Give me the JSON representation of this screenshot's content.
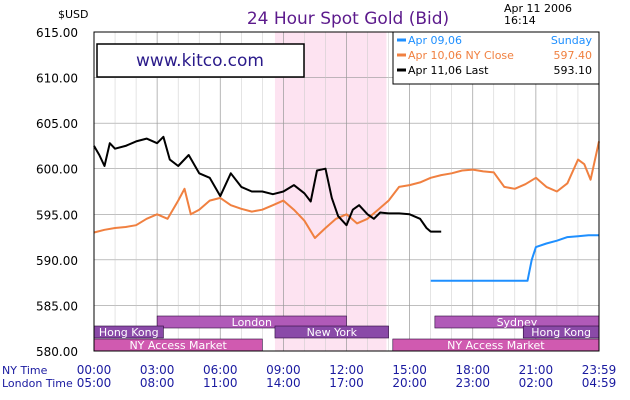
{
  "chart_data": {
    "type": "line",
    "title": "24 Hour Spot Gold (Bid)",
    "y_unit": "$USD",
    "timestamp": [
      "Apr 11 2006",
      "16:14"
    ],
    "watermark": "www.kitco.com",
    "ylim": [
      580,
      615
    ],
    "y_ticks": [
      "615.00",
      "610.00",
      "605.00",
      "600.00",
      "595.00",
      "590.00",
      "585.00",
      "580.00"
    ],
    "x_rows": [
      {
        "label": "NY Time",
        "ticks": [
          "00:00",
          "03:00",
          "06:00",
          "09:00",
          "12:00",
          "15:00",
          "18:00",
          "21:00",
          "23:59"
        ]
      },
      {
        "label": "London Time",
        "ticks": [
          "05:00",
          "08:00",
          "11:00",
          "14:00",
          "17:00",
          "20:00",
          "23:00",
          "02:00",
          "04:59"
        ]
      }
    ],
    "legend": [
      {
        "label": "Apr  09,06",
        "right": "Sunday",
        "color": "#1e8fff"
      },
      {
        "label": "Apr  10,06  NY Close",
        "right": "597.40",
        "color": "#f08040"
      },
      {
        "label": "Apr  11,06  Last",
        "right": "593.10",
        "color": "#000000"
      }
    ],
    "highlight_window": {
      "from_hour": 8.6,
      "to_hour": 13.9,
      "color": "#fde3f1"
    },
    "sessions": [
      {
        "name": "London",
        "start": 3.0,
        "end": 12.0,
        "row": 0,
        "color": "#b05ab8"
      },
      {
        "name": "Sydney",
        "start": 16.2,
        "end": 24.0,
        "row": 0,
        "color": "#b05ab8"
      },
      {
        "name": "Hong  Kong",
        "start": 0.0,
        "end": 3.3,
        "row": 1,
        "color": "#8a4aa8"
      },
      {
        "name": "New  York",
        "start": 8.6,
        "end": 14.0,
        "row": 1,
        "color": "#8a4aa8"
      },
      {
        "name": "Hong  Kong",
        "start": 20.4,
        "end": 24.0,
        "row": 1,
        "color": "#8a4aa8"
      },
      {
        "name": "NY  Access  Market",
        "start": 0.0,
        "end": 8.0,
        "row": 2,
        "color": "#d05ab0"
      },
      {
        "name": "NY  Access  Market",
        "start": 14.2,
        "end": 24.0,
        "row": 2,
        "color": "#d05ab0"
      }
    ],
    "series": [
      {
        "name": "Apr 09,06",
        "color": "#1e8fff",
        "x": [
          16.0,
          17.0,
          18.0,
          19.0,
          20.0,
          20.6,
          20.8,
          21.0,
          21.5,
          22.0,
          22.5,
          23.0,
          23.5,
          24.0
        ],
        "y": [
          587.7,
          587.7,
          587.7,
          587.7,
          587.7,
          587.7,
          590.0,
          591.4,
          591.8,
          592.1,
          592.5,
          592.6,
          592.7,
          592.7
        ]
      },
      {
        "name": "Apr 10,06",
        "color": "#f08040",
        "x": [
          0.0,
          0.5,
          1.0,
          1.5,
          2.0,
          2.5,
          3.0,
          3.5,
          4.0,
          4.3,
          4.6,
          5.0,
          5.5,
          6.0,
          6.5,
          7.0,
          7.5,
          8.0,
          8.5,
          9.0,
          9.5,
          10.0,
          10.5,
          11.0,
          11.5,
          12.0,
          12.5,
          13.0,
          13.5,
          14.0,
          14.5,
          15.0,
          15.5,
          16.0,
          16.5,
          17.0,
          17.5,
          18.0,
          18.5,
          19.0,
          19.5,
          20.0,
          20.5,
          21.0,
          21.5,
          22.0,
          22.5,
          23.0,
          23.3,
          23.6,
          24.0
        ],
        "y": [
          593.0,
          593.3,
          593.5,
          593.6,
          593.8,
          594.5,
          595.0,
          594.5,
          596.5,
          597.8,
          595.0,
          595.5,
          596.5,
          596.8,
          596.0,
          595.6,
          595.3,
          595.5,
          596.0,
          596.5,
          595.5,
          594.3,
          592.4,
          593.5,
          594.5,
          595.0,
          594.0,
          594.5,
          595.5,
          596.5,
          598.0,
          598.2,
          598.5,
          599.0,
          599.3,
          599.5,
          599.8,
          599.9,
          599.7,
          599.6,
          598.0,
          597.8,
          598.3,
          599.0,
          598.0,
          597.5,
          598.4,
          601.0,
          600.5,
          598.8,
          603.0
        ]
      },
      {
        "name": "Apr 11,06",
        "color": "#000000",
        "x": [
          0.0,
          0.25,
          0.5,
          0.75,
          1.0,
          1.5,
          2.0,
          2.5,
          3.0,
          3.3,
          3.6,
          4.0,
          4.5,
          5.0,
          5.5,
          6.0,
          6.5,
          7.0,
          7.5,
          8.0,
          8.5,
          9.0,
          9.5,
          10.0,
          10.3,
          10.6,
          11.0,
          11.3,
          11.6,
          12.0,
          12.3,
          12.6,
          13.0,
          13.3,
          13.6,
          14.0,
          14.5,
          15.0,
          15.5,
          15.8,
          16.0,
          16.5
        ],
        "y": [
          602.5,
          601.5,
          600.3,
          602.8,
          602.2,
          602.5,
          603.0,
          603.3,
          602.8,
          603.5,
          601.0,
          600.3,
          601.5,
          599.5,
          599.0,
          597.0,
          599.5,
          598.0,
          597.5,
          597.5,
          597.2,
          597.5,
          598.2,
          597.3,
          596.4,
          599.8,
          600.0,
          596.8,
          594.8,
          593.8,
          595.5,
          596.0,
          595.0,
          594.5,
          595.2,
          595.1,
          595.1,
          595.0,
          594.5,
          593.5,
          593.1,
          593.1
        ]
      }
    ]
  }
}
